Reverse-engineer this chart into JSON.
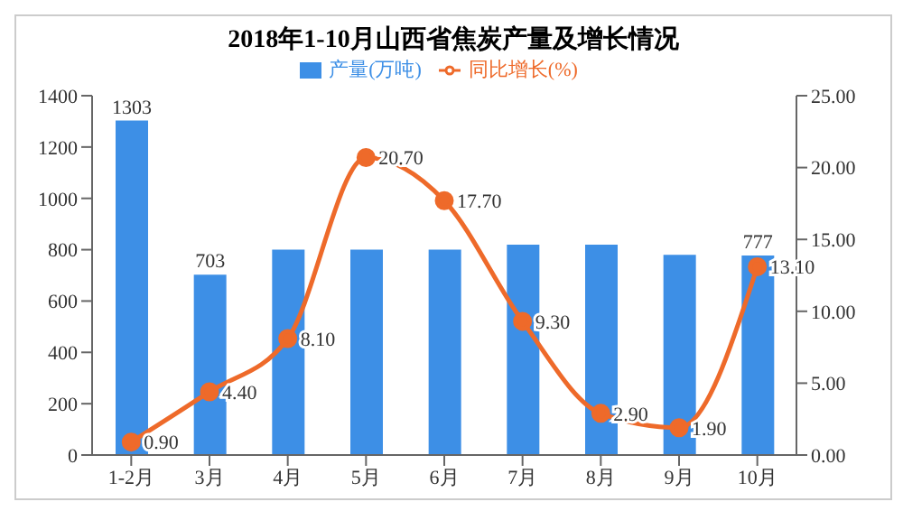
{
  "chart_data": {
    "type": "bar",
    "title": "2018年1-10月山西省焦炭产量及增长情况",
    "categories": [
      "1-2月",
      "3月",
      "4月",
      "5月",
      "6月",
      "7月",
      "8月",
      "9月",
      "10月"
    ],
    "series": [
      {
        "name": "产量(万吨)",
        "color": "#3d8fe6",
        "values": [
          1303,
          703,
          800,
          800,
          800,
          820,
          820,
          780,
          777
        ],
        "value_labels": [
          "1303",
          "703",
          null,
          null,
          null,
          null,
          null,
          null,
          "777"
        ]
      },
      {
        "name": "同比增长(%)",
        "type": "line",
        "axis": "y2",
        "color": "#ee6a2a",
        "values": [
          0.9,
          4.4,
          8.1,
          20.7,
          17.7,
          9.3,
          2.9,
          1.9,
          13.1
        ],
        "value_labels": [
          "0.90",
          "4.40",
          "8.10",
          "20.70",
          "17.70",
          "9.30",
          "2.90",
          "1.90",
          "13.10"
        ]
      }
    ],
    "ylim": [
      0,
      1400
    ],
    "yticks": [
      0,
      200,
      400,
      600,
      800,
      1000,
      1200,
      1400
    ],
    "y2lim": [
      0,
      25
    ],
    "y2ticks": [
      {
        "value": 0,
        "label": "0.00"
      },
      {
        "value": 5,
        "label": "5.00"
      },
      {
        "value": 10,
        "label": "10.00"
      },
      {
        "value": 15,
        "label": "15.00"
      },
      {
        "value": 20,
        "label": "20.00"
      },
      {
        "value": 25,
        "label": "25.00"
      }
    ],
    "legend": "top",
    "grid": false,
    "marker": "circle",
    "line_style": "solid"
  }
}
